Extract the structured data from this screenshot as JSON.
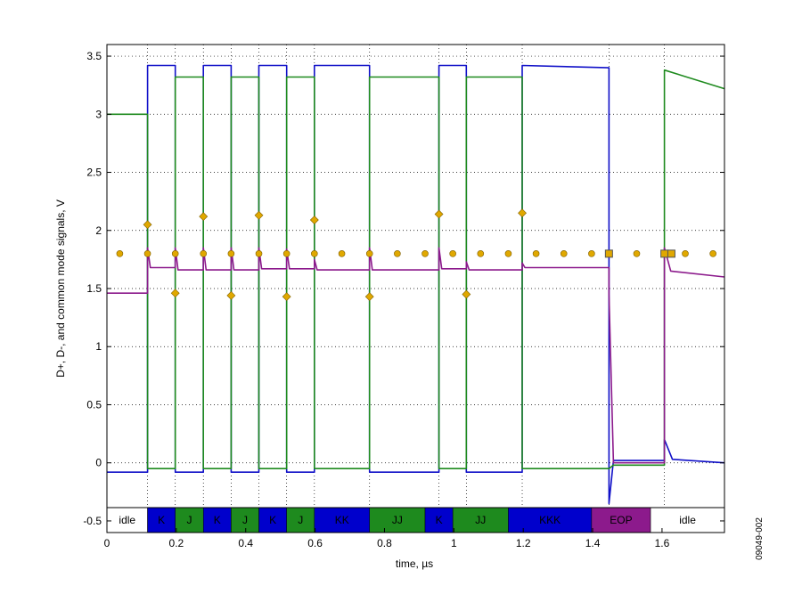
{
  "chart_data": {
    "type": "line",
    "xlabel": "time, µs",
    "ylabel": "D+, D-, and common mode signals, V",
    "xlim": [
      0,
      1.78
    ],
    "ylim": [
      -0.6,
      3.6
    ],
    "x_ticks": [
      "0",
      "0.2",
      "0.4",
      "0.6",
      "0.8",
      "1",
      "1.2",
      "1.4",
      "1.6"
    ],
    "x_tick_values": [
      0,
      0.2,
      0.4,
      0.6,
      0.8,
      1.0,
      1.2,
      1.4,
      1.6
    ],
    "y_ticks": [
      "-0.5",
      "0",
      "0.5",
      "1",
      "1.5",
      "2",
      "2.5",
      "3",
      "3.5"
    ],
    "y_tick_values": [
      -0.5,
      0,
      0.5,
      1,
      1.5,
      2,
      2.5,
      3,
      3.5
    ],
    "grid": true,
    "figure_id": "09049-002",
    "colors": {
      "d_plus": "#1010c8",
      "d_minus": "#1e8a1e",
      "common_mode": "#8c1a8c",
      "marker": "#e0a800",
      "marker_edge": "#806000"
    },
    "transitions": [
      0.117,
      0.197,
      0.278,
      0.358,
      0.438,
      0.518,
      0.598,
      0.757,
      0.957,
      1.036,
      1.197,
      1.447,
      1.607
    ],
    "series": [
      {
        "key": "d_plus",
        "points": [
          [
            0,
            -0.08
          ],
          [
            0.117,
            -0.08
          ],
          [
            0.117,
            3.42
          ],
          [
            0.197,
            3.42
          ],
          [
            0.197,
            -0.08
          ],
          [
            0.278,
            -0.08
          ],
          [
            0.278,
            3.42
          ],
          [
            0.358,
            3.42
          ],
          [
            0.358,
            -0.08
          ],
          [
            0.438,
            -0.08
          ],
          [
            0.438,
            3.42
          ],
          [
            0.518,
            3.42
          ],
          [
            0.518,
            -0.08
          ],
          [
            0.598,
            -0.08
          ],
          [
            0.598,
            3.42
          ],
          [
            0.757,
            3.42
          ],
          [
            0.757,
            -0.08
          ],
          [
            0.957,
            -0.08
          ],
          [
            0.957,
            3.42
          ],
          [
            1.036,
            3.42
          ],
          [
            1.036,
            -0.08
          ],
          [
            1.197,
            -0.08
          ],
          [
            1.197,
            3.42
          ],
          [
            1.447,
            3.4
          ],
          [
            1.447,
            -0.35
          ],
          [
            1.46,
            0.02
          ],
          [
            1.607,
            0.02
          ],
          [
            1.607,
            0.2
          ],
          [
            1.63,
            0.03
          ],
          [
            1.78,
            0.0
          ]
        ]
      },
      {
        "key": "d_minus",
        "points": [
          [
            0,
            3.0
          ],
          [
            0.117,
            3.0
          ],
          [
            0.117,
            -0.05
          ],
          [
            0.197,
            -0.05
          ],
          [
            0.197,
            3.32
          ],
          [
            0.278,
            3.32
          ],
          [
            0.278,
            -0.05
          ],
          [
            0.358,
            -0.05
          ],
          [
            0.358,
            3.32
          ],
          [
            0.438,
            3.32
          ],
          [
            0.438,
            -0.05
          ],
          [
            0.518,
            -0.05
          ],
          [
            0.518,
            3.32
          ],
          [
            0.598,
            3.32
          ],
          [
            0.598,
            -0.05
          ],
          [
            0.757,
            -0.05
          ],
          [
            0.757,
            3.32
          ],
          [
            0.957,
            3.32
          ],
          [
            0.957,
            -0.05
          ],
          [
            1.036,
            -0.05
          ],
          [
            1.036,
            3.32
          ],
          [
            1.197,
            3.32
          ],
          [
            1.197,
            -0.05
          ],
          [
            1.447,
            -0.05
          ],
          [
            1.46,
            -0.02
          ],
          [
            1.607,
            -0.02
          ],
          [
            1.607,
            3.38
          ],
          [
            1.78,
            3.22
          ]
        ]
      },
      {
        "key": "common_mode",
        "points": [
          [
            0,
            1.46
          ],
          [
            0.117,
            1.46
          ],
          [
            0.117,
            1.85
          ],
          [
            0.125,
            1.68
          ],
          [
            0.197,
            1.68
          ],
          [
            0.197,
            1.85
          ],
          [
            0.205,
            1.66
          ],
          [
            0.278,
            1.66
          ],
          [
            0.278,
            1.85
          ],
          [
            0.286,
            1.66
          ],
          [
            0.358,
            1.66
          ],
          [
            0.358,
            1.85
          ],
          [
            0.366,
            1.66
          ],
          [
            0.438,
            1.66
          ],
          [
            0.438,
            1.85
          ],
          [
            0.446,
            1.67
          ],
          [
            0.518,
            1.67
          ],
          [
            0.518,
            1.84
          ],
          [
            0.526,
            1.67
          ],
          [
            0.598,
            1.67
          ],
          [
            0.598,
            1.75
          ],
          [
            0.606,
            1.66
          ],
          [
            0.757,
            1.66
          ],
          [
            0.757,
            1.85
          ],
          [
            0.765,
            1.66
          ],
          [
            0.957,
            1.66
          ],
          [
            0.957,
            1.85
          ],
          [
            0.965,
            1.67
          ],
          [
            1.036,
            1.67
          ],
          [
            1.036,
            1.73
          ],
          [
            1.044,
            1.66
          ],
          [
            1.197,
            1.66
          ],
          [
            1.197,
            1.72
          ],
          [
            1.205,
            1.68
          ],
          [
            1.447,
            1.68
          ],
          [
            1.447,
            1.45
          ],
          [
            1.46,
            0.0
          ],
          [
            1.607,
            0.0
          ],
          [
            1.607,
            1.85
          ],
          [
            1.625,
            1.65
          ],
          [
            1.78,
            1.6
          ]
        ]
      }
    ],
    "sample_dots": {
      "x": [
        0.037,
        0.117,
        0.197,
        0.278,
        0.358,
        0.438,
        0.518,
        0.598,
        0.677,
        0.757,
        0.837,
        0.917,
        0.997,
        1.077,
        1.157,
        1.237,
        1.317,
        1.397,
        1.527,
        1.667,
        1.747
      ],
      "y": 1.8
    },
    "sample_squares": {
      "x": [
        1.447,
        1.607,
        1.627
      ],
      "y": 1.8
    },
    "crossing_diamonds": [
      [
        0.117,
        2.05
      ],
      [
        0.197,
        1.46
      ],
      [
        0.278,
        2.12
      ],
      [
        0.358,
        1.44
      ],
      [
        0.438,
        2.13
      ],
      [
        0.518,
        1.43
      ],
      [
        0.598,
        2.09
      ],
      [
        0.757,
        1.43
      ],
      [
        0.957,
        2.14
      ],
      [
        1.036,
        1.45
      ],
      [
        1.197,
        2.15
      ]
    ],
    "states": [
      {
        "label": "idle",
        "x0": 0.0,
        "x1": 0.117,
        "color": "#ffffff",
        "text_color": "#000000"
      },
      {
        "label": "K",
        "x0": 0.117,
        "x1": 0.197,
        "color": "#0000cc",
        "text_color": "#ffffff"
      },
      {
        "label": "J",
        "x0": 0.197,
        "x1": 0.278,
        "color": "#1e8a1e",
        "text_color": "#ffffff"
      },
      {
        "label": "K",
        "x0": 0.278,
        "x1": 0.358,
        "color": "#0000cc",
        "text_color": "#ffffff"
      },
      {
        "label": "J",
        "x0": 0.358,
        "x1": 0.438,
        "color": "#1e8a1e",
        "text_color": "#ffffff"
      },
      {
        "label": "K",
        "x0": 0.438,
        "x1": 0.518,
        "color": "#0000cc",
        "text_color": "#ffffff"
      },
      {
        "label": "J",
        "x0": 0.518,
        "x1": 0.598,
        "color": "#1e8a1e",
        "text_color": "#ffffff"
      },
      {
        "label": "KK",
        "x0": 0.598,
        "x1": 0.757,
        "color": "#0000cc",
        "text_color": "#ffffff"
      },
      {
        "label": "JJ",
        "x0": 0.757,
        "x1": 0.917,
        "color": "#1e8a1e",
        "text_color": "#ffffff"
      },
      {
        "label": "K",
        "x0": 0.917,
        "x1": 0.997,
        "color": "#0000cc",
        "text_color": "#ffffff"
      },
      {
        "label": "JJ",
        "x0": 0.997,
        "x1": 1.157,
        "color": "#1e8a1e",
        "text_color": "#ffffff"
      },
      {
        "label": "KKK",
        "x0": 1.157,
        "x1": 1.397,
        "color": "#0000cc",
        "text_color": "#ffffff"
      },
      {
        "label": "EOP",
        "x0": 1.397,
        "x1": 1.567,
        "color": "#8c1a8c",
        "text_color": "#ffffff"
      },
      {
        "label": "idle",
        "x0": 1.567,
        "x1": 1.78,
        "color": "#ffffff",
        "text_color": "#000000"
      }
    ]
  }
}
